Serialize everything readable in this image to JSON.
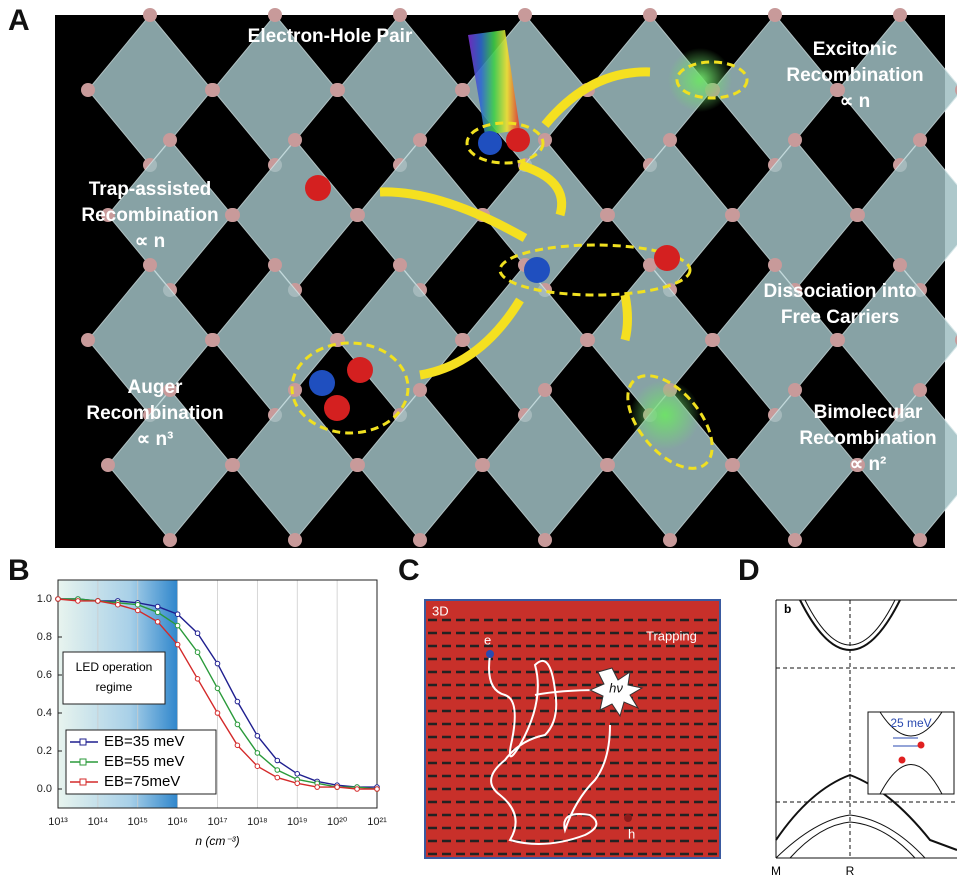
{
  "panel_a": {
    "letter": "A",
    "annotations": [
      {
        "lines": [
          "Electron-Hole Pair"
        ]
      },
      {
        "lines": [
          "Excitonic",
          "Recombination",
          "∝ n"
        ]
      },
      {
        "lines": [
          "Trap-assisted",
          "Recombination",
          "∝ n"
        ]
      },
      {
        "lines": [
          "Dissociation into",
          "Free Carriers"
        ]
      },
      {
        "lines": [
          "Auger",
          "Recombination",
          "∝ n³"
        ]
      },
      {
        "lines": [
          "Bimolecular",
          "Recombination",
          "∝ n²"
        ]
      }
    ]
  },
  "chart_data": {
    "type": "line",
    "letter": "B",
    "x_label": "n (cm⁻³)",
    "led_label": [
      "LED operation",
      "regime"
    ],
    "x": [
      10000000000000.0,
      31600000000000.0,
      100000000000000.0,
      316000000000000.0,
      1000000000000000.0,
      3160000000000000.0,
      1e+16,
      3.16e+16,
      1e+17,
      3.16e+17,
      1e+18,
      3.16e+18,
      1e+19,
      3.16e+19,
      1e+20,
      3.16e+20,
      1e+21
    ],
    "series": [
      {
        "name": "EB=35 meV",
        "color": "#1f1f8f",
        "values": [
          1.0,
          1.0,
          0.99,
          0.99,
          0.98,
          0.96,
          0.92,
          0.82,
          0.66,
          0.46,
          0.28,
          0.15,
          0.08,
          0.04,
          0.02,
          0.01,
          0.01
        ]
      },
      {
        "name": "EB=55 meV",
        "color": "#2a9a3a",
        "values": [
          1.0,
          1.0,
          0.99,
          0.98,
          0.97,
          0.93,
          0.86,
          0.72,
          0.53,
          0.34,
          0.19,
          0.1,
          0.05,
          0.03,
          0.01,
          0.01,
          0.0
        ]
      },
      {
        "name": "EB=75meV",
        "color": "#d42a2a",
        "values": [
          1.0,
          0.99,
          0.99,
          0.97,
          0.94,
          0.88,
          0.76,
          0.58,
          0.4,
          0.23,
          0.12,
          0.06,
          0.03,
          0.01,
          0.01,
          0.0,
          0.0
        ]
      }
    ],
    "log_x": true,
    "grid": true,
    "xlim": [
      10000000000000.0,
      1e+21
    ],
    "xticks": [
      {
        "value": 10000000000000.0,
        "label": "10¹³"
      },
      {
        "value": 100000000000000.0,
        "label": "10¹⁴"
      },
      {
        "value": 1000000000000000.0,
        "label": "10¹⁵"
      },
      {
        "value": 1e+16,
        "label": "10¹⁶"
      },
      {
        "value": 1e+17,
        "label": "10¹⁷"
      },
      {
        "value": 1e+18,
        "label": "10¹⁸"
      },
      {
        "value": 1e+19,
        "label": "10¹⁹"
      },
      {
        "value": 1e+20,
        "label": "10²⁰"
      },
      {
        "value": 1e+21,
        "label": "10²¹"
      }
    ],
    "ylim": [
      -0.1,
      1.1
    ],
    "yticks": [
      {
        "value": 0,
        "label": "0.0"
      },
      {
        "value": 0.2,
        "label": "0.2"
      },
      {
        "value": 0.4,
        "label": "0.4"
      },
      {
        "value": 0.6,
        "label": "0.6"
      },
      {
        "value": 0.8,
        "label": "0.8"
      },
      {
        "value": 1.0,
        "label": "1.0"
      }
    ],
    "shaded_range": [
      10000000000000.0,
      1e+16
    ]
  },
  "panel_c": {
    "letter": "C",
    "dimension": "3D",
    "electron": "e",
    "hole": "h",
    "trapping": "Trapping",
    "photon": "hν"
  },
  "panel_d": {
    "letter": "D",
    "sub_letter": "b",
    "gap": "25 meV",
    "k_labels": [
      "M",
      "R"
    ]
  }
}
